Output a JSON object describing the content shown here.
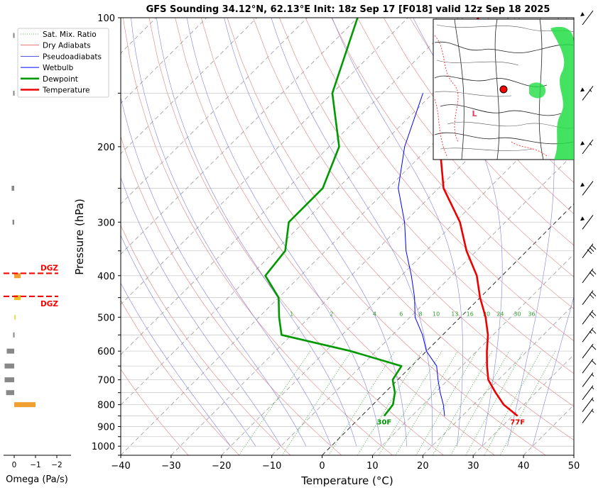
{
  "chart_data": {
    "type": "line",
    "title": "GFS Sounding 34.12°N, 62.13°E Init: 18z Sep 17 [F018] valid 12z Sep 18 2025",
    "xlabel": "Temperature (°C)",
    "ylabel": "Pressure (hPa)",
    "xlim": [
      -40,
      50
    ],
    "ylim": [
      1050,
      100
    ],
    "y_scale": "log",
    "grid": true,
    "xticks": [
      -40,
      -30,
      -20,
      -10,
      0,
      10,
      20,
      30,
      40,
      50
    ],
    "xtick_labels": [
      "−40",
      "−30",
      "−20",
      "−10",
      "0",
      "10",
      "20",
      "30",
      "40",
      "50"
    ],
    "yticks": [
      100,
      200,
      300,
      400,
      500,
      600,
      700,
      800,
      900,
      1000
    ],
    "ytick_labels": [
      "100",
      "200",
      "300",
      "400",
      "500",
      "600",
      "700",
      "800",
      "900",
      "1000"
    ],
    "legend": {
      "placement": "top-left",
      "entries": [
        {
          "name": "Sat. Mix. Ratio",
          "color": "#2ca02c",
          "style": "dotted"
        },
        {
          "name": "Dry Adiabats",
          "color": "#d62728",
          "style": "thin"
        },
        {
          "name": "Pseudoadiabats",
          "color": "#1f1fd0",
          "style": "thin"
        },
        {
          "name": "Wetbulb",
          "color": "#0000ff",
          "style": "solid"
        },
        {
          "name": "Dewpoint",
          "color": "#009900",
          "style": "thick"
        },
        {
          "name": "Temperature",
          "color": "#ee0000",
          "style": "thick"
        }
      ]
    },
    "series": [
      {
        "name": "Temperature",
        "color": "#ee0000",
        "points": [
          [
            850,
            31
          ],
          [
            800,
            26
          ],
          [
            750,
            22
          ],
          [
            700,
            18
          ],
          [
            650,
            15
          ],
          [
            600,
            12
          ],
          [
            550,
            9
          ],
          [
            500,
            5
          ],
          [
            450,
            0
          ],
          [
            400,
            -5
          ],
          [
            350,
            -12
          ],
          [
            300,
            -19
          ],
          [
            250,
            -29
          ],
          [
            200,
            -38
          ],
          [
            150,
            -48
          ],
          [
            125,
            -54
          ],
          [
            100,
            -56
          ]
        ]
      },
      {
        "name": "Dewpoint",
        "color": "#009900",
        "points": [
          [
            850,
            4.5
          ],
          [
            800,
            4
          ],
          [
            750,
            2
          ],
          [
            700,
            -1
          ],
          [
            650,
            -2
          ],
          [
            600,
            -15
          ],
          [
            550,
            -32
          ],
          [
            500,
            -36
          ],
          [
            450,
            -40
          ],
          [
            400,
            -47
          ],
          [
            350,
            -48
          ],
          [
            300,
            -53
          ],
          [
            250,
            -53
          ],
          [
            200,
            -58
          ],
          [
            150,
            -70
          ],
          [
            100,
            -80
          ]
        ]
      },
      {
        "name": "Wetbulb",
        "color": "#0000ff",
        "points": [
          [
            850,
            16.5
          ],
          [
            800,
            14
          ],
          [
            750,
            11
          ],
          [
            700,
            8
          ],
          [
            650,
            5
          ],
          [
            600,
            0
          ],
          [
            550,
            -4
          ],
          [
            500,
            -9
          ],
          [
            450,
            -13
          ],
          [
            400,
            -18
          ],
          [
            350,
            -24
          ],
          [
            300,
            -30
          ],
          [
            250,
            -38
          ],
          [
            200,
            -45
          ],
          [
            150,
            -52
          ]
        ]
      }
    ],
    "mixing_ratio_labels": [
      "1",
      "2",
      "4",
      "6",
      "8",
      "10",
      "13",
      "16",
      "20",
      "24",
      "30",
      "36"
    ],
    "mixing_ratio_values": [
      1,
      2,
      4,
      6,
      8,
      10,
      13,
      16,
      20,
      24,
      30,
      36
    ],
    "surface_labels": {
      "temperature": "77F",
      "dewpoint": "30F"
    },
    "omega_panel": {
      "xlabel": "Omega (Pa/s)",
      "xticks": [
        "0",
        "−1",
        "−2"
      ],
      "dgz_label": "DGZ",
      "bars": [
        {
          "p": 110,
          "value": 0.05,
          "color": "#888888"
        },
        {
          "p": 150,
          "value": 0.05,
          "color": "#888888"
        },
        {
          "p": 250,
          "value": 0.12,
          "color": "#888888"
        },
        {
          "p": 300,
          "value": 0.08,
          "color": "#888888"
        },
        {
          "p": 400,
          "value": -0.3,
          "color": "#f0a030"
        },
        {
          "p": 450,
          "value": -0.3,
          "color": "#f0c020"
        },
        {
          "p": 500,
          "value": -0.05,
          "color": "#e8e060"
        },
        {
          "p": 550,
          "value": 0.05,
          "color": "#888888"
        },
        {
          "p": 600,
          "value": 0.35,
          "color": "#888888"
        },
        {
          "p": 650,
          "value": 0.45,
          "color": "#888888"
        },
        {
          "p": 700,
          "value": 0.45,
          "color": "#888888"
        },
        {
          "p": 750,
          "value": 0.38,
          "color": "#888888"
        },
        {
          "p": 800,
          "value": -1.0,
          "color": "#f0a030"
        }
      ],
      "dgz_pressures": [
        395,
        447
      ]
    },
    "wind_barbs": [
      {
        "p": 100,
        "speed": 50
      },
      {
        "p": 150,
        "speed": 55
      },
      {
        "p": 200,
        "speed": 55
      },
      {
        "p": 250,
        "speed": 50
      },
      {
        "p": 300,
        "speed": 50
      },
      {
        "p": 350,
        "speed": 30
      },
      {
        "p": 400,
        "speed": 20
      },
      {
        "p": 450,
        "speed": 20
      },
      {
        "p": 500,
        "speed": 20
      },
      {
        "p": 550,
        "speed": 15
      },
      {
        "p": 600,
        "speed": 10
      },
      {
        "p": 650,
        "speed": 10
      },
      {
        "p": 700,
        "speed": 5
      },
      {
        "p": 750,
        "speed": 5
      },
      {
        "p": 800,
        "speed": 5
      },
      {
        "p": 850,
        "speed": 5
      }
    ]
  }
}
